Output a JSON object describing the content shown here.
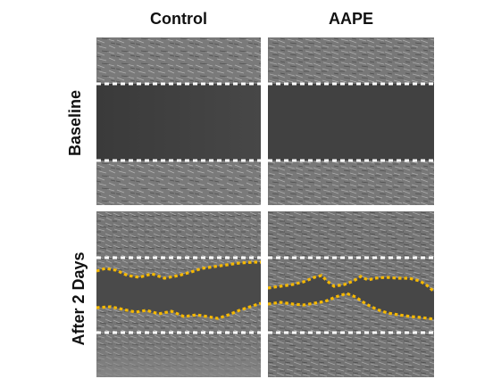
{
  "figure": {
    "column_headers": [
      "Control",
      "AAPE"
    ],
    "row_labels": [
      "Baseline",
      "After 2 Days"
    ]
  },
  "colors": {
    "baseline_boundary": "#ffffff",
    "migration_front": "#f5b800",
    "cell_region": "#7a7a7a",
    "scratch_region": "#3e3e3e"
  },
  "panels": [
    {
      "condition": "Control",
      "timepoint": "Baseline",
      "migration_front_shown": false
    },
    {
      "condition": "AAPE",
      "timepoint": "Baseline",
      "migration_front_shown": false
    },
    {
      "condition": "Control",
      "timepoint": "After 2 Days",
      "migration_front_shown": true
    },
    {
      "condition": "AAPE",
      "timepoint": "After 2 Days",
      "migration_front_shown": true
    }
  ]
}
